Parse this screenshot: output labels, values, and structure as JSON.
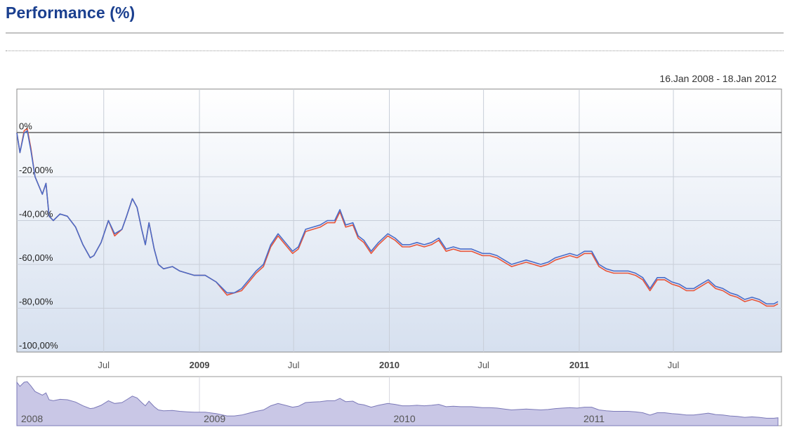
{
  "header": {
    "title": "Performance (%)",
    "date_range": "16.Jan 2008 - 18.Jan 2012"
  },
  "colors": {
    "title": "#1a3f8f",
    "series_a": "#4a6cc8",
    "series_b": "#e8553a",
    "plot_bg_top": "#ffffff",
    "plot_bg_bottom": "#d6e0ef",
    "navigator_fill": "#c9c7e6",
    "navigator_line": "#7b79b8"
  },
  "chart_data": {
    "type": "line",
    "title": "Performance (%)",
    "xlabel": "",
    "ylabel": "",
    "xlim": [
      "2008-01-16",
      "2012-01-18"
    ],
    "ylim": [
      -100,
      20
    ],
    "y_ticks": [
      {
        "value": 0,
        "label": "0%"
      },
      {
        "value": -20,
        "label": "-20,00%"
      },
      {
        "value": -40,
        "label": "-40,00%"
      },
      {
        "value": -60,
        "label": "-60,00%"
      },
      {
        "value": -80,
        "label": "-80,00%"
      },
      {
        "value": -100,
        "label": "-100,00%"
      }
    ],
    "x_ticks": [
      {
        "date": "2008-07-01",
        "label": "Jul",
        "year": false
      },
      {
        "date": "2009-01-01",
        "label": "2009",
        "year": true
      },
      {
        "date": "2009-07-01",
        "label": "Jul",
        "year": false
      },
      {
        "date": "2010-01-01",
        "label": "2010",
        "year": true
      },
      {
        "date": "2010-07-01",
        "label": "Jul",
        "year": false
      },
      {
        "date": "2011-01-01",
        "label": "2011",
        "year": true
      },
      {
        "date": "2011-07-01",
        "label": "Jul",
        "year": false
      }
    ],
    "grid": true,
    "legend": "none",
    "series": [
      {
        "points": [
          [
            "2008-01-16",
            0
          ],
          [
            "2008-01-22",
            -9
          ],
          [
            "2008-01-30",
            0
          ],
          [
            "2008-02-05",
            1
          ],
          [
            "2008-02-12",
            -8
          ],
          [
            "2008-02-20",
            -20
          ],
          [
            "2008-03-05",
            -28
          ],
          [
            "2008-03-12",
            -23
          ],
          [
            "2008-03-18",
            -38
          ],
          [
            "2008-03-26",
            -40
          ],
          [
            "2008-04-08",
            -37
          ],
          [
            "2008-04-22",
            -38
          ],
          [
            "2008-05-08",
            -43
          ],
          [
            "2008-05-22",
            -51
          ],
          [
            "2008-06-05",
            -57
          ],
          [
            "2008-06-12",
            -56
          ],
          [
            "2008-06-26",
            -50
          ],
          [
            "2008-07-10",
            -40
          ],
          [
            "2008-07-22",
            -46
          ],
          [
            "2008-08-05",
            -44
          ],
          [
            "2008-08-14",
            -38
          ],
          [
            "2008-08-25",
            -30
          ],
          [
            "2008-09-03",
            -34
          ],
          [
            "2008-09-12",
            -44
          ],
          [
            "2008-09-19",
            -51
          ],
          [
            "2008-09-26",
            -41
          ],
          [
            "2008-10-06",
            -53
          ],
          [
            "2008-10-14",
            -60
          ],
          [
            "2008-10-24",
            -62
          ],
          [
            "2008-11-10",
            -61
          ],
          [
            "2008-11-24",
            -63
          ],
          [
            "2008-12-08",
            -64
          ],
          [
            "2008-12-22",
            -65
          ],
          [
            "2009-01-12",
            -65
          ],
          [
            "2009-02-02",
            -68
          ],
          [
            "2009-02-23",
            -73
          ],
          [
            "2009-03-09",
            -73
          ],
          [
            "2009-03-23",
            -71
          ],
          [
            "2009-04-06",
            -67
          ],
          [
            "2009-04-20",
            -63
          ],
          [
            "2009-05-04",
            -60
          ],
          [
            "2009-05-18",
            -51
          ],
          [
            "2009-06-01",
            -46
          ],
          [
            "2009-06-15",
            -50
          ],
          [
            "2009-06-29",
            -54
          ],
          [
            "2009-07-10",
            -52
          ],
          [
            "2009-07-24",
            -44
          ],
          [
            "2009-08-07",
            -43
          ],
          [
            "2009-08-21",
            -42
          ],
          [
            "2009-09-04",
            -40
          ],
          [
            "2009-09-18",
            -40
          ],
          [
            "2009-09-28",
            -35
          ],
          [
            "2009-10-09",
            -42
          ],
          [
            "2009-10-23",
            -41
          ],
          [
            "2009-11-02",
            -47
          ],
          [
            "2009-11-13",
            -49
          ],
          [
            "2009-11-27",
            -54
          ],
          [
            "2009-12-11",
            -50
          ],
          [
            "2009-12-29",
            -46
          ],
          [
            "2010-01-12",
            -48
          ],
          [
            "2010-01-26",
            -51
          ],
          [
            "2010-02-09",
            -51
          ],
          [
            "2010-02-23",
            -50
          ],
          [
            "2010-03-09",
            -51
          ],
          [
            "2010-03-23",
            -50
          ],
          [
            "2010-04-06",
            -48
          ],
          [
            "2010-04-20",
            -53
          ],
          [
            "2010-05-04",
            -52
          ],
          [
            "2010-05-18",
            -53
          ],
          [
            "2010-06-08",
            -53
          ],
          [
            "2010-06-29",
            -55
          ],
          [
            "2010-07-13",
            -55
          ],
          [
            "2010-07-27",
            -56
          ],
          [
            "2010-08-10",
            -58
          ],
          [
            "2010-08-24",
            -60
          ],
          [
            "2010-09-07",
            -59
          ],
          [
            "2010-09-21",
            -58
          ],
          [
            "2010-10-05",
            -59
          ],
          [
            "2010-10-19",
            -60
          ],
          [
            "2010-11-02",
            -59
          ],
          [
            "2010-11-16",
            -57
          ],
          [
            "2010-11-30",
            -56
          ],
          [
            "2010-12-14",
            -55
          ],
          [
            "2010-12-28",
            -56
          ],
          [
            "2011-01-11",
            -54
          ],
          [
            "2011-01-25",
            -54
          ],
          [
            "2011-02-08",
            -60
          ],
          [
            "2011-02-22",
            -62
          ],
          [
            "2011-03-08",
            -63
          ],
          [
            "2011-03-22",
            -63
          ],
          [
            "2011-04-05",
            -63
          ],
          [
            "2011-04-19",
            -64
          ],
          [
            "2011-05-03",
            -66
          ],
          [
            "2011-05-17",
            -71
          ],
          [
            "2011-05-31",
            -66
          ],
          [
            "2011-06-14",
            -66
          ],
          [
            "2011-06-28",
            -68
          ],
          [
            "2011-07-12",
            -69
          ],
          [
            "2011-07-26",
            -71
          ],
          [
            "2011-08-09",
            -71
          ],
          [
            "2011-08-23",
            -69
          ],
          [
            "2011-09-06",
            -67
          ],
          [
            "2011-09-20",
            -70
          ],
          [
            "2011-10-04",
            -71
          ],
          [
            "2011-10-18",
            -73
          ],
          [
            "2011-11-01",
            -74
          ],
          [
            "2011-11-15",
            -76
          ],
          [
            "2011-11-29",
            -75
          ],
          [
            "2011-12-13",
            -76
          ],
          [
            "2011-12-27",
            -78
          ],
          [
            "2012-01-10",
            -78
          ],
          [
            "2012-01-18",
            -77
          ]
        ]
      },
      {
        "offset_note": "",
        "points": [
          [
            "2008-01-16",
            0
          ],
          [
            "2008-01-22",
            -9
          ],
          [
            "2008-01-30",
            1
          ],
          [
            "2008-02-05",
            2
          ],
          [
            "2008-02-12",
            -7
          ],
          [
            "2008-02-20",
            -20
          ],
          [
            "2008-03-05",
            -28
          ],
          [
            "2008-03-12",
            -23
          ],
          [
            "2008-03-18",
            -38
          ],
          [
            "2008-03-26",
            -40
          ],
          [
            "2008-04-08",
            -37
          ],
          [
            "2008-04-22",
            -38
          ],
          [
            "2008-05-08",
            -43
          ],
          [
            "2008-05-22",
            -51
          ],
          [
            "2008-06-05",
            -57
          ],
          [
            "2008-06-12",
            -56
          ],
          [
            "2008-06-26",
            -50
          ],
          [
            "2008-07-10",
            -40
          ],
          [
            "2008-07-22",
            -47
          ],
          [
            "2008-08-05",
            -44
          ],
          [
            "2008-08-14",
            -38
          ],
          [
            "2008-08-25",
            -30
          ],
          [
            "2008-09-03",
            -34
          ],
          [
            "2008-09-12",
            -44
          ],
          [
            "2008-09-19",
            -51
          ],
          [
            "2008-09-26",
            -41
          ],
          [
            "2008-10-06",
            -53
          ],
          [
            "2008-10-14",
            -60
          ],
          [
            "2008-10-24",
            -62
          ],
          [
            "2008-11-10",
            -61
          ],
          [
            "2008-11-24",
            -63
          ],
          [
            "2008-12-08",
            -64
          ],
          [
            "2008-12-22",
            -65
          ],
          [
            "2009-01-12",
            -65
          ],
          [
            "2009-02-02",
            -68
          ],
          [
            "2009-02-23",
            -74
          ],
          [
            "2009-03-09",
            -73
          ],
          [
            "2009-03-23",
            -72
          ],
          [
            "2009-04-06",
            -68
          ],
          [
            "2009-04-20",
            -64
          ],
          [
            "2009-05-04",
            -61
          ],
          [
            "2009-05-18",
            -52
          ],
          [
            "2009-06-01",
            -47
          ],
          [
            "2009-06-15",
            -51
          ],
          [
            "2009-06-29",
            -55
          ],
          [
            "2009-07-10",
            -53
          ],
          [
            "2009-07-24",
            -45
          ],
          [
            "2009-08-07",
            -44
          ],
          [
            "2009-08-21",
            -43
          ],
          [
            "2009-09-04",
            -41
          ],
          [
            "2009-09-18",
            -41
          ],
          [
            "2009-09-28",
            -36
          ],
          [
            "2009-10-09",
            -43
          ],
          [
            "2009-10-23",
            -42
          ],
          [
            "2009-11-02",
            -48
          ],
          [
            "2009-11-13",
            -50
          ],
          [
            "2009-11-27",
            -55
          ],
          [
            "2009-12-11",
            -51
          ],
          [
            "2009-12-29",
            -47
          ],
          [
            "2010-01-12",
            -49
          ],
          [
            "2010-01-26",
            -52
          ],
          [
            "2010-02-09",
            -52
          ],
          [
            "2010-02-23",
            -51
          ],
          [
            "2010-03-09",
            -52
          ],
          [
            "2010-03-23",
            -51
          ],
          [
            "2010-04-06",
            -49
          ],
          [
            "2010-04-20",
            -54
          ],
          [
            "2010-05-04",
            -53
          ],
          [
            "2010-05-18",
            -54
          ],
          [
            "2010-06-08",
            -54
          ],
          [
            "2010-06-29",
            -56
          ],
          [
            "2010-07-13",
            -56
          ],
          [
            "2010-07-27",
            -57
          ],
          [
            "2010-08-10",
            -59
          ],
          [
            "2010-08-24",
            -61
          ],
          [
            "2010-09-07",
            -60
          ],
          [
            "2010-09-21",
            -59
          ],
          [
            "2010-10-05",
            -60
          ],
          [
            "2010-10-19",
            -61
          ],
          [
            "2010-11-02",
            -60
          ],
          [
            "2010-11-16",
            -58
          ],
          [
            "2010-11-30",
            -57
          ],
          [
            "2010-12-14",
            -56
          ],
          [
            "2010-12-28",
            -57
          ],
          [
            "2011-01-11",
            -55
          ],
          [
            "2011-01-25",
            -55
          ],
          [
            "2011-02-08",
            -61
          ],
          [
            "2011-02-22",
            -63
          ],
          [
            "2011-03-08",
            -64
          ],
          [
            "2011-03-22",
            -64
          ],
          [
            "2011-04-05",
            -64
          ],
          [
            "2011-04-19",
            -65
          ],
          [
            "2011-05-03",
            -67
          ],
          [
            "2011-05-17",
            -72
          ],
          [
            "2011-05-31",
            -67
          ],
          [
            "2011-06-14",
            -67
          ],
          [
            "2011-06-28",
            -69
          ],
          [
            "2011-07-12",
            -70
          ],
          [
            "2011-07-26",
            -72
          ],
          [
            "2011-08-09",
            -72
          ],
          [
            "2011-08-23",
            -70
          ],
          [
            "2011-09-06",
            -68
          ],
          [
            "2011-09-20",
            -71
          ],
          [
            "2011-10-04",
            -72
          ],
          [
            "2011-10-18",
            -74
          ],
          [
            "2011-11-01",
            -75
          ],
          [
            "2011-11-15",
            -77
          ],
          [
            "2011-11-29",
            -76
          ],
          [
            "2011-12-13",
            -77
          ],
          [
            "2011-12-27",
            -79
          ],
          [
            "2012-01-10",
            -79
          ],
          [
            "2012-01-18",
            -78
          ]
        ]
      }
    ],
    "navigator": {
      "labels": [
        {
          "date": "2008-01-16",
          "label": "2008"
        },
        {
          "date": "2009-01-01",
          "label": "2009"
        },
        {
          "date": "2010-01-01",
          "label": "2010"
        },
        {
          "date": "2011-01-01",
          "label": "2011"
        }
      ]
    }
  }
}
